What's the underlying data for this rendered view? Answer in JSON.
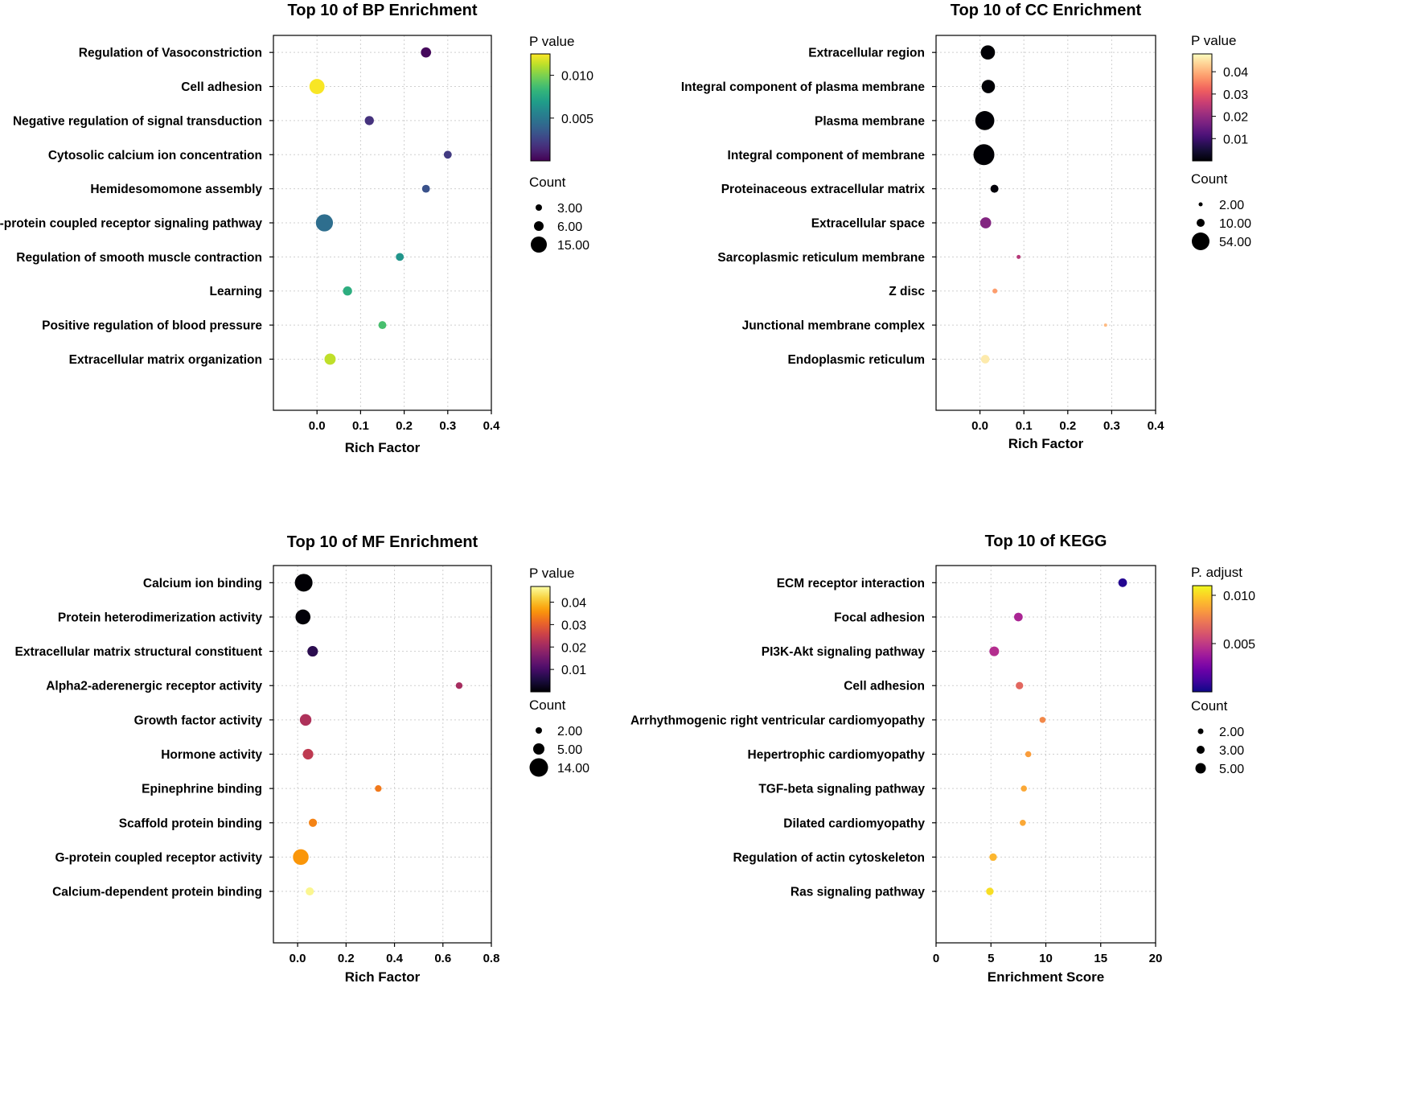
{
  "chart_data": [
    {
      "type": "scatter",
      "title": "Top 10 of BP Enrichment",
      "xlabel": "Rich Factor",
      "xlim": [
        -0.1,
        0.4
      ],
      "xticks": [
        "0.0",
        "0.1",
        "0.2",
        "0.3",
        "0.4"
      ],
      "xtick_values": [
        0.0,
        0.1,
        0.2,
        0.3,
        0.4
      ],
      "grid": true,
      "color_legend": {
        "title": "P value",
        "colormap": "viridis",
        "min": 0.0,
        "max": 0.0125,
        "ticks": [
          "0.010",
          "0.005"
        ],
        "tick_values": [
          0.01,
          0.005
        ]
      },
      "size_legend": {
        "title": "Count",
        "labels": [
          "3.00",
          "6.00",
          "15.00"
        ],
        "values": [
          3,
          6,
          15
        ],
        "vmax": 15
      },
      "categories": [
        "Regulation of Vasoconstriction",
        "Cell adhesion",
        "Negative regulation of signal transduction",
        "Cytosolic calcium ion concentration",
        "Hemidesomomone assembly",
        "G-protein coupled receptor signaling pathway",
        "Regulation of smooth muscle contraction",
        "Learning",
        "Positive regulation of blood pressure",
        "Extracellular matrix organization"
      ],
      "x": [
        0.25,
        0.0,
        0.12,
        0.3,
        0.25,
        0.017,
        0.19,
        0.07,
        0.15,
        0.03
      ],
      "count": [
        5,
        11,
        4,
        3,
        3,
        14,
        3,
        4,
        3,
        6
      ],
      "pvalue": [
        0.0003,
        0.0124,
        0.0018,
        0.0022,
        0.0032,
        0.0045,
        0.0065,
        0.0078,
        0.0088,
        0.0113
      ]
    },
    {
      "type": "scatter",
      "title": "Top 10 of CC Enrichment",
      "xlabel": "Rich Factor",
      "xlim": [
        -0.1,
        0.4
      ],
      "xticks": [
        "0.0",
        "0.1",
        "0.2",
        "0.3",
        "0.4"
      ],
      "xtick_values": [
        0.0,
        0.1,
        0.2,
        0.3,
        0.4
      ],
      "grid": true,
      "color_legend": {
        "title": "P value",
        "colormap": "magma",
        "min": 0.0,
        "max": 0.048,
        "ticks": [
          "0.04",
          "0.03",
          "0.02",
          "0.01"
        ],
        "tick_values": [
          0.04,
          0.03,
          0.02,
          0.01
        ]
      },
      "size_legend": {
        "title": "Count",
        "labels": [
          "2.00",
          "10.00",
          "54.00"
        ],
        "values": [
          2,
          10,
          54
        ],
        "vmax": 54
      },
      "categories": [
        "Extracellular region",
        "Integral component of plasma membrane",
        "Plasma membrane",
        "Integral component of membrane",
        "Proteinaceous extracellular matrix",
        "Extracellular space",
        "Sarcoplasmic reticulum membrane",
        "Z disc",
        "Junctional membrane complex",
        "Endoplasmic reticulum"
      ],
      "x": [
        0.018,
        0.019,
        0.011,
        0.009,
        0.033,
        0.013,
        0.088,
        0.034,
        0.286,
        0.012
      ],
      "count": [
        25,
        22,
        45,
        54,
        8,
        15,
        2,
        3,
        1,
        9
      ],
      "pvalue": [
        0.0001,
        0.0001,
        0.0001,
        0.0001,
        0.0005,
        0.018,
        0.024,
        0.038,
        0.041,
        0.046
      ]
    },
    {
      "type": "scatter",
      "title": "Top 10 of MF Enrichment",
      "xlabel": "Rich Factor",
      "xlim": [
        -0.1,
        0.8
      ],
      "xticks": [
        "0.0",
        "0.2",
        "0.4",
        "0.6",
        "0.8"
      ],
      "xtick_values": [
        0.0,
        0.2,
        0.4,
        0.6,
        0.8
      ],
      "grid": true,
      "color_legend": {
        "title": "P value",
        "colormap": "inferno",
        "min": 0.0,
        "max": 0.047,
        "ticks": [
          "0.04",
          "0.03",
          "0.02",
          "0.01"
        ],
        "tick_values": [
          0.04,
          0.03,
          0.02,
          0.01
        ]
      },
      "size_legend": {
        "title": "Count",
        "labels": [
          "2.00",
          "5.00",
          "14.00"
        ],
        "values": [
          2,
          5,
          14
        ],
        "vmax": 14
      },
      "categories": [
        "Calcium ion binding",
        "Protein heterodimerization activity",
        "Extracellular matrix structural constituent",
        "Alpha2-aderenergic receptor activity",
        "Growth factor activity",
        "Hormone activity",
        "Epinephrine binding",
        "Scaffold protein binding",
        "G-protein coupled receptor activity",
        "Calcium-dependent protein binding"
      ],
      "x": [
        0.025,
        0.022,
        0.062,
        0.667,
        0.033,
        0.043,
        0.333,
        0.063,
        0.013,
        0.05
      ],
      "count": [
        14,
        10,
        5,
        2,
        6,
        5,
        2,
        3,
        11,
        3
      ],
      "pvalue": [
        0.0001,
        0.0003,
        0.007,
        0.021,
        0.022,
        0.024,
        0.033,
        0.034,
        0.036,
        0.046
      ]
    },
    {
      "type": "scatter",
      "title": "Top 10 of KEGG",
      "xlabel": "Enrichment Score",
      "xlim": [
        0,
        20
      ],
      "xticks": [
        "0",
        "5",
        "10",
        "15",
        "20"
      ],
      "xtick_values": [
        0,
        5,
        10,
        15,
        20
      ],
      "grid": true,
      "color_legend": {
        "title": "P. adjust",
        "colormap": "plasma",
        "min": 0.0,
        "max": 0.011,
        "ticks": [
          "0.010",
          "0.005"
        ],
        "tick_values": [
          0.01,
          0.005
        ]
      },
      "size_legend": {
        "title": "Count",
        "labels": [
          "2.00",
          "3.00",
          "5.00"
        ],
        "values": [
          2,
          3,
          5
        ],
        "vmax": 5
      },
      "categories": [
        "ECM receptor interaction",
        "Focal adhesion",
        "PI3K-Akt signaling pathway",
        "Cell adhesion",
        "Arrhythmogenic right ventricular cardiomyopathy",
        "Hepertrophic cardiomyopathy",
        "TGF-beta signaling pathway",
        "Dilated cardiomyopathy",
        "Regulation of actin cytoskeleton",
        "Ras signaling pathway"
      ],
      "x": [
        17.0,
        7.5,
        5.3,
        7.6,
        9.7,
        8.4,
        8.0,
        7.9,
        5.2,
        4.9
      ],
      "count": [
        4,
        4,
        5,
        3,
        2,
        2,
        2,
        2,
        3,
        3
      ],
      "pvalue": [
        0.0005,
        0.0042,
        0.0045,
        0.0067,
        0.0078,
        0.0085,
        0.0088,
        0.0088,
        0.0092,
        0.0103
      ]
    }
  ]
}
